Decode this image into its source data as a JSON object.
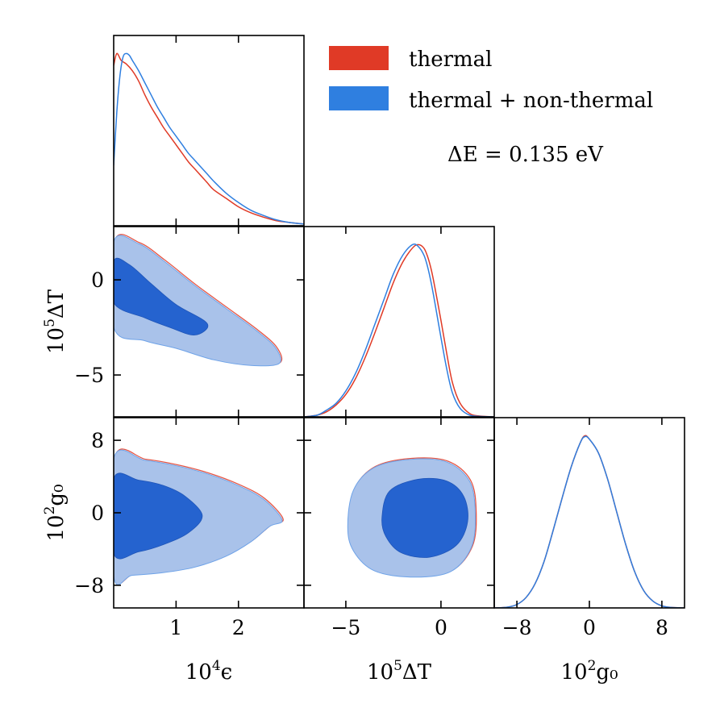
{
  "chart_data": {
    "type": "corner-plot",
    "annotation": "ΔE = 0.135 eV",
    "colors": {
      "thermal": "#e03a26",
      "thermal_nonthermal": "#2f7fe0",
      "contour_outer": "#a9c2ea",
      "contour_inner": "#2563cf"
    },
    "legend": {
      "placement": "top-right",
      "entries": [
        {
          "label": "thermal",
          "color": "#e03a26"
        },
        {
          "label": "thermal + non-thermal",
          "color": "#2f7fe0"
        }
      ]
    },
    "variables": [
      {
        "key": "eps",
        "label_prefix": "10",
        "label_exp": "4",
        "label_symbol": "ϵ",
        "range": [
          0.0,
          3.05
        ],
        "ticks": [
          1,
          2
        ],
        "tick_labels": [
          "1",
          "2"
        ]
      },
      {
        "key": "dT",
        "label_prefix": "10",
        "label_exp": "5",
        "label_symbol": "ΔT",
        "range": [
          -7.2,
          2.8
        ],
        "ticks": [
          -5,
          0
        ],
        "tick_labels": [
          "−5",
          "0"
        ]
      },
      {
        "key": "g0",
        "label_prefix": "10",
        "label_exp": "2",
        "label_symbol": "g₀",
        "range": [
          -10.5,
          10.5
        ],
        "ticks": [
          -8,
          0,
          8
        ],
        "tick_labels": [
          "−8",
          "0",
          "8"
        ]
      }
    ],
    "marginals": [
      {
        "variable": "eps",
        "series": [
          {
            "name": "thermal",
            "x": [
              0.0,
              0.05,
              0.12,
              0.2,
              0.3,
              0.4,
              0.5,
              0.6,
              0.7,
              0.8,
              0.9,
              1.0,
              1.1,
              1.2,
              1.3,
              1.4,
              1.5,
              1.6,
              1.8,
              2.0,
              2.2,
              2.4,
              2.6,
              2.8,
              3.05
            ],
            "y": [
              0.93,
              1.0,
              0.96,
              0.94,
              0.9,
              0.84,
              0.76,
              0.69,
              0.63,
              0.57,
              0.52,
              0.47,
              0.42,
              0.37,
              0.33,
              0.29,
              0.25,
              0.21,
              0.16,
              0.11,
              0.075,
              0.05,
              0.03,
              0.02,
              0.01
            ]
          },
          {
            "name": "thermal + non-thermal",
            "x": [
              0.0,
              0.05,
              0.1,
              0.15,
              0.2,
              0.25,
              0.3,
              0.4,
              0.5,
              0.6,
              0.7,
              0.8,
              0.9,
              1.0,
              1.1,
              1.2,
              1.3,
              1.4,
              1.5,
              1.6,
              1.8,
              2.0,
              2.2,
              2.4,
              2.6,
              2.8,
              3.05
            ],
            "y": [
              0.35,
              0.66,
              0.87,
              0.98,
              1.0,
              0.99,
              0.96,
              0.9,
              0.83,
              0.76,
              0.69,
              0.63,
              0.57,
              0.52,
              0.47,
              0.42,
              0.38,
              0.34,
              0.3,
              0.26,
              0.19,
              0.135,
              0.09,
              0.06,
              0.035,
              0.02,
              0.01
            ]
          }
        ]
      },
      {
        "variable": "dT",
        "series": [
          {
            "name": "thermal",
            "x": [
              -7.2,
              -6.5,
              -6.0,
              -5.5,
              -5.0,
              -4.5,
              -4.0,
              -3.5,
              -3.0,
              -2.5,
              -2.0,
              -1.5,
              -1.2,
              -0.9,
              -0.7,
              -0.5,
              -0.3,
              0.0,
              0.3,
              0.6,
              1.0,
              1.5,
              2.0,
              2.8
            ],
            "y": [
              0.0,
              0.01,
              0.03,
              0.07,
              0.13,
              0.22,
              0.34,
              0.48,
              0.63,
              0.78,
              0.9,
              0.98,
              1.0,
              0.98,
              0.93,
              0.85,
              0.74,
              0.56,
              0.37,
              0.2,
              0.08,
              0.02,
              0.005,
              0.0
            ]
          },
          {
            "name": "thermal + non-thermal",
            "x": [
              -7.2,
              -6.5,
              -6.0,
              -5.5,
              -5.0,
              -4.5,
              -4.0,
              -3.5,
              -3.0,
              -2.5,
              -2.0,
              -1.5,
              -1.2,
              -0.9,
              -0.7,
              -0.5,
              -0.3,
              0.0,
              0.3,
              0.6,
              1.0,
              1.5,
              2.0,
              2.8
            ],
            "y": [
              0.0,
              0.01,
              0.04,
              0.08,
              0.15,
              0.25,
              0.38,
              0.53,
              0.68,
              0.83,
              0.94,
              1.0,
              0.99,
              0.94,
              0.87,
              0.77,
              0.65,
              0.46,
              0.28,
              0.14,
              0.05,
              0.01,
              0.003,
              0.0
            ]
          }
        ]
      },
      {
        "variable": "g0",
        "series": [
          {
            "name": "thermal",
            "x": [
              -10.5,
              -9,
              -8,
              -7,
              -6,
              -5,
              -4,
              -3,
              -2,
              -1,
              -0.5,
              0,
              1,
              2,
              3,
              4,
              5,
              6,
              7,
              8,
              9,
              10.5
            ],
            "y": [
              0.0,
              0.005,
              0.02,
              0.06,
              0.14,
              0.27,
              0.45,
              0.64,
              0.82,
              0.96,
              1.0,
              0.98,
              0.9,
              0.75,
              0.56,
              0.37,
              0.21,
              0.1,
              0.04,
              0.012,
              0.003,
              0.0
            ]
          },
          {
            "name": "thermal + non-thermal",
            "x": [
              -10.5,
              -9,
              -8,
              -7,
              -6,
              -5,
              -4,
              -3,
              -2,
              -1,
              -0.5,
              0,
              1,
              2,
              3,
              4,
              5,
              6,
              7,
              8,
              9,
              10.5
            ],
            "y": [
              0.0,
              0.005,
              0.02,
              0.06,
              0.14,
              0.27,
              0.45,
              0.64,
              0.82,
              0.96,
              0.995,
              0.98,
              0.9,
              0.75,
              0.56,
              0.37,
              0.21,
              0.1,
              0.04,
              0.012,
              0.003,
              0.0
            ]
          }
        ]
      }
    ],
    "contours": [
      {
        "x": "eps",
        "y": "dT",
        "outer": [
          [
            0.0,
            2.0
          ],
          [
            0.4,
            1.9
          ],
          [
            0.8,
            1.0
          ],
          [
            1.3,
            -0.3
          ],
          [
            1.8,
            -1.5
          ],
          [
            2.3,
            -2.7
          ],
          [
            2.6,
            -3.6
          ],
          [
            2.65,
            -4.4
          ],
          [
            2.2,
            -4.5
          ],
          [
            1.6,
            -4.2
          ],
          [
            1.0,
            -3.6
          ],
          [
            0.5,
            -3.2
          ],
          [
            0.0,
            -2.5
          ]
        ],
        "inner": [
          [
            0.0,
            1.0
          ],
          [
            0.25,
            0.8
          ],
          [
            0.6,
            -0.2
          ],
          [
            1.0,
            -1.3
          ],
          [
            1.5,
            -2.3
          ],
          [
            1.3,
            -2.9
          ],
          [
            0.9,
            -2.5
          ],
          [
            0.5,
            -2.0
          ],
          [
            0.0,
            -1.2
          ]
        ]
      },
      {
        "x": "eps",
        "y": "g0",
        "outer": [
          [
            0.0,
            6.0
          ],
          [
            0.5,
            5.8
          ],
          [
            1.0,
            5.2
          ],
          [
            1.5,
            4.3
          ],
          [
            2.0,
            3.0
          ],
          [
            2.4,
            1.5
          ],
          [
            2.7,
            -0.8
          ],
          [
            2.5,
            -1.5
          ],
          [
            2.2,
            -3.2
          ],
          [
            1.8,
            -4.8
          ],
          [
            1.3,
            -6.0
          ],
          [
            0.8,
            -6.6
          ],
          [
            0.3,
            -6.9
          ],
          [
            0.0,
            -7.0
          ]
        ],
        "inner": [
          [
            0.0,
            3.8
          ],
          [
            0.4,
            3.6
          ],
          [
            0.8,
            3.0
          ],
          [
            1.15,
            1.8
          ],
          [
            1.42,
            -0.3
          ],
          [
            1.2,
            -2.2
          ],
          [
            0.8,
            -3.5
          ],
          [
            0.4,
            -4.3
          ],
          [
            0.0,
            -4.5
          ]
        ]
      },
      {
        "x": "dT",
        "y": "g0",
        "outer": [
          [
            -4.9,
            -1.5
          ],
          [
            -4.6,
            2.5
          ],
          [
            -3.5,
            5.0
          ],
          [
            -1.6,
            5.9
          ],
          [
            0.3,
            5.6
          ],
          [
            1.5,
            3.5
          ],
          [
            1.8,
            0.0
          ],
          [
            1.6,
            -3.8
          ],
          [
            0.5,
            -6.5
          ],
          [
            -1.5,
            -7.1
          ],
          [
            -3.5,
            -6.4
          ],
          [
            -4.6,
            -4.2
          ]
        ],
        "inner": [
          [
            -3.1,
            -0.5
          ],
          [
            -2.7,
            2.4
          ],
          [
            -1.2,
            3.7
          ],
          [
            0.3,
            3.5
          ],
          [
            1.2,
            1.8
          ],
          [
            1.4,
            -1.0
          ],
          [
            0.8,
            -3.6
          ],
          [
            -0.6,
            -4.9
          ],
          [
            -2.1,
            -4.4
          ],
          [
            -2.9,
            -2.6
          ]
        ]
      }
    ]
  }
}
